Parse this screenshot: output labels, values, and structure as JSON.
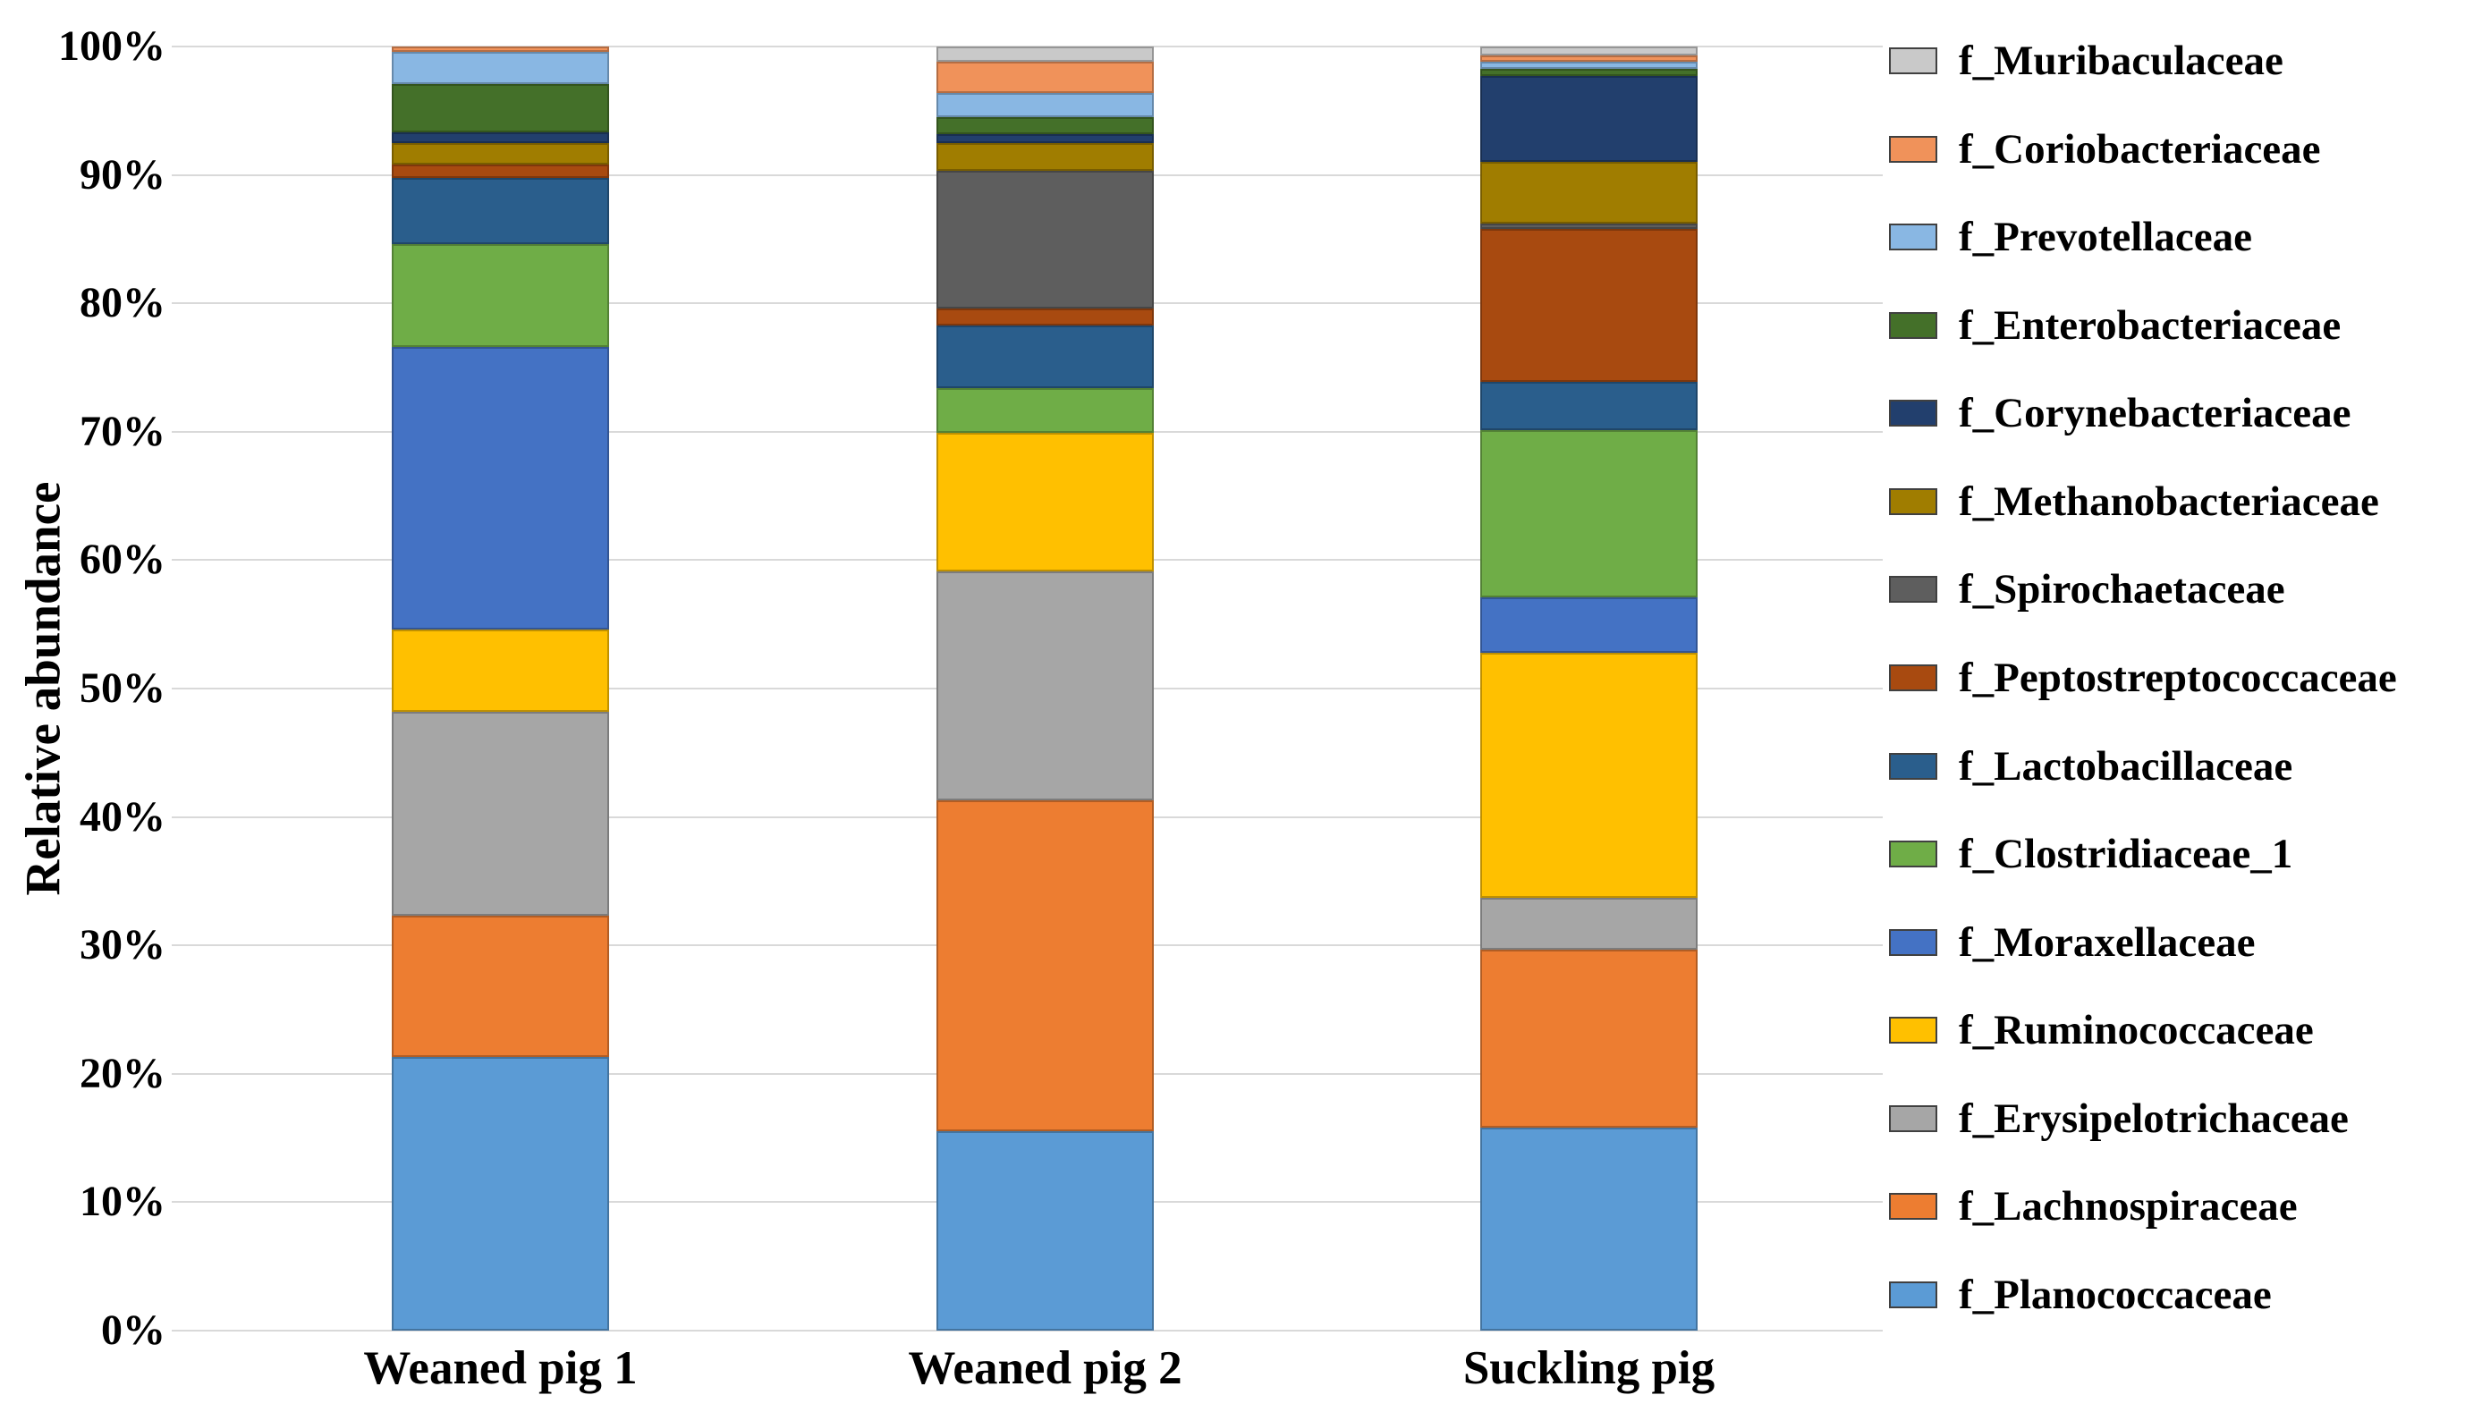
{
  "y_axis": {
    "title": "Relative abundance",
    "ticks": [
      "0%",
      "10%",
      "20%",
      "30%",
      "40%",
      "50%",
      "60%",
      "70%",
      "80%",
      "90%",
      "100%"
    ]
  },
  "x_axis": {
    "categories": [
      "Weaned pig 1",
      "Weaned pig 2",
      "Suckling pig"
    ]
  },
  "legend": {
    "position": "right",
    "items": [
      {
        "label": "f_Muribaculaceae",
        "color": "#c9c9c9"
      },
      {
        "label": "f_Coriobacteriaceae",
        "color": "#f0925a"
      },
      {
        "label": "f_Prevotellaceae",
        "color": "#89b7e3"
      },
      {
        "label": "f_Enterobacteriaceae",
        "color": "#447029"
      },
      {
        "label": "f_Corynebacteriaceae",
        "color": "#223f6d"
      },
      {
        "label": "f_Methanobacteriaceae",
        "color": "#a07d00"
      },
      {
        "label": "f_Spirochaetaceae",
        "color": "#5e5e5e"
      },
      {
        "label": "f_Peptostreptococcaceae",
        "color": "#a84a10"
      },
      {
        "label": "f_Lactobacillaceae",
        "color": "#2a5e8c"
      },
      {
        "label": "f_Clostridiaceae_1",
        "color": "#6fad47"
      },
      {
        "label": "f_Moraxellaceae",
        "color": "#4472c4"
      },
      {
        "label": "f_Ruminococcaceae",
        "color": "#ffc000"
      },
      {
        "label": "f_Erysipelotrichaceae",
        "color": "#a6a6a6"
      },
      {
        "label": "f_Lachnospiraceae",
        "color": "#ed7d31"
      },
      {
        "label": "f_Planococcaceae",
        "color": "#5b9bd5"
      }
    ]
  },
  "chart_data": {
    "type": "bar",
    "stacked": true,
    "title": "",
    "xlabel": "",
    "ylabel": "Relative abundance",
    "ylim": [
      0,
      100
    ],
    "yticks_percent": [
      0,
      10,
      20,
      30,
      40,
      50,
      60,
      70,
      80,
      90,
      100
    ],
    "grid": "horizontal",
    "legend_position": "right",
    "categories": [
      "Weaned pig 1",
      "Weaned pig 2",
      "Suckling pig"
    ],
    "stack_note": "series are listed in legend order (top to bottom); bars stack bottom-up in the reverse of this order, so f_Planococcaceae is the bottom segment",
    "series": [
      {
        "name": "f_Muribaculaceae",
        "color": "#c9c9c9",
        "values": [
          0.0,
          1.2,
          0.7
        ]
      },
      {
        "name": "f_Coriobacteriaceae",
        "color": "#f0925a",
        "values": [
          0.4,
          2.4,
          0.5
        ]
      },
      {
        "name": "f_Prevotellaceae",
        "color": "#89b7e3",
        "values": [
          2.5,
          1.9,
          0.5
        ]
      },
      {
        "name": "f_Enterobacteriaceae",
        "color": "#447029",
        "values": [
          3.8,
          1.3,
          0.6
        ]
      },
      {
        "name": "f_Corynebacteriaceae",
        "color": "#223f6d",
        "values": [
          0.8,
          0.7,
          6.7
        ]
      },
      {
        "name": "f_Methanobacteriaceae",
        "color": "#a07d00",
        "values": [
          1.7,
          2.2,
          4.8
        ]
      },
      {
        "name": "f_Spirochaetaceae",
        "color": "#5e5e5e",
        "values": [
          0.0,
          10.7,
          0.4
        ]
      },
      {
        "name": "f_Peptostreptococcaceae",
        "color": "#a84a10",
        "values": [
          1.0,
          1.3,
          11.9
        ]
      },
      {
        "name": "f_Lactobacillaceae",
        "color": "#2a5e8c",
        "values": [
          5.2,
          4.9,
          3.8
        ]
      },
      {
        "name": "f_Clostridiaceae_1",
        "color": "#6fad47",
        "values": [
          8.0,
          3.5,
          13.0
        ]
      },
      {
        "name": "f_Moraxellaceae",
        "color": "#4472c4",
        "values": [
          22.0,
          0.0,
          4.3
        ]
      },
      {
        "name": "f_Ruminococcaceae",
        "color": "#ffc000",
        "values": [
          6.4,
          10.8,
          19.1
        ]
      },
      {
        "name": "f_Erysipelotrichaceae",
        "color": "#a6a6a6",
        "values": [
          15.9,
          17.8,
          4.0
        ]
      },
      {
        "name": "f_Lachnospiraceae",
        "color": "#ed7d31",
        "values": [
          11.0,
          25.8,
          13.9
        ]
      },
      {
        "name": "f_Planococcaceae",
        "color": "#5b9bd5",
        "values": [
          21.3,
          15.5,
          15.8
        ]
      }
    ]
  }
}
